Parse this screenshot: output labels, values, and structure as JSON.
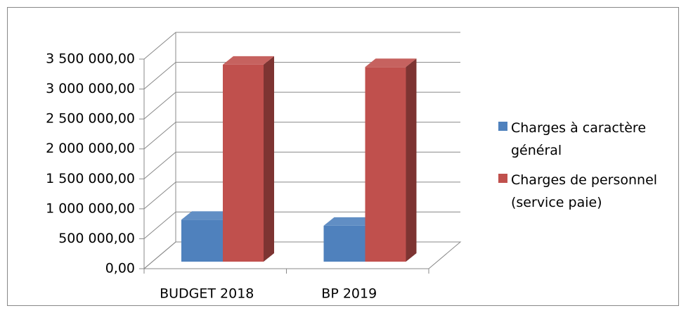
{
  "chart_data": {
    "type": "bar3d",
    "categories": [
      "BUDGET 2018",
      "BP 2019"
    ],
    "series": [
      {
        "name": "Charges à caractère général",
        "color": "#4f81bd",
        "values": [
          700000,
          600000
        ]
      },
      {
        "name": "Charges de personnel (service paie)",
        "color": "#c0504d",
        "values": [
          3290000,
          3250000
        ]
      }
    ],
    "ylim": [
      0,
      3500000
    ],
    "yticks": [
      {
        "value": 0,
        "label": "0,00"
      },
      {
        "value": 500000,
        "label": "500 000,00"
      },
      {
        "value": 1000000,
        "label": "1 000 000,00"
      },
      {
        "value": 1500000,
        "label": "1 500 000,00"
      },
      {
        "value": 2000000,
        "label": "2 000 000,00"
      },
      {
        "value": 2500000,
        "label": "2 500 000,00"
      },
      {
        "value": 3000000,
        "label": "3 000 000,00"
      },
      {
        "value": 3500000,
        "label": "3 500 000,00"
      }
    ],
    "grid": true,
    "legend": "right"
  }
}
